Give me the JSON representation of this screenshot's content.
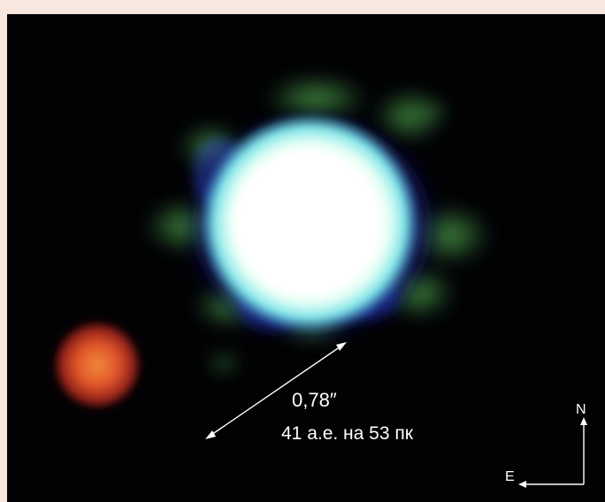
{
  "image": {
    "separation_label": "0,78″",
    "distance_label": "41 а.е. на 53 пк",
    "compass": {
      "north_label": "N",
      "east_label": "E"
    },
    "colors": {
      "border": "#f7e7df",
      "sky": "#020205",
      "star_core": "#ffffff",
      "star_halo": "#6fdbe0",
      "star_blue_ring": "#2530a8",
      "star_green_speckles": "#3f8a3a",
      "companion": "#e0552a",
      "annotation": "#ffffff"
    }
  }
}
